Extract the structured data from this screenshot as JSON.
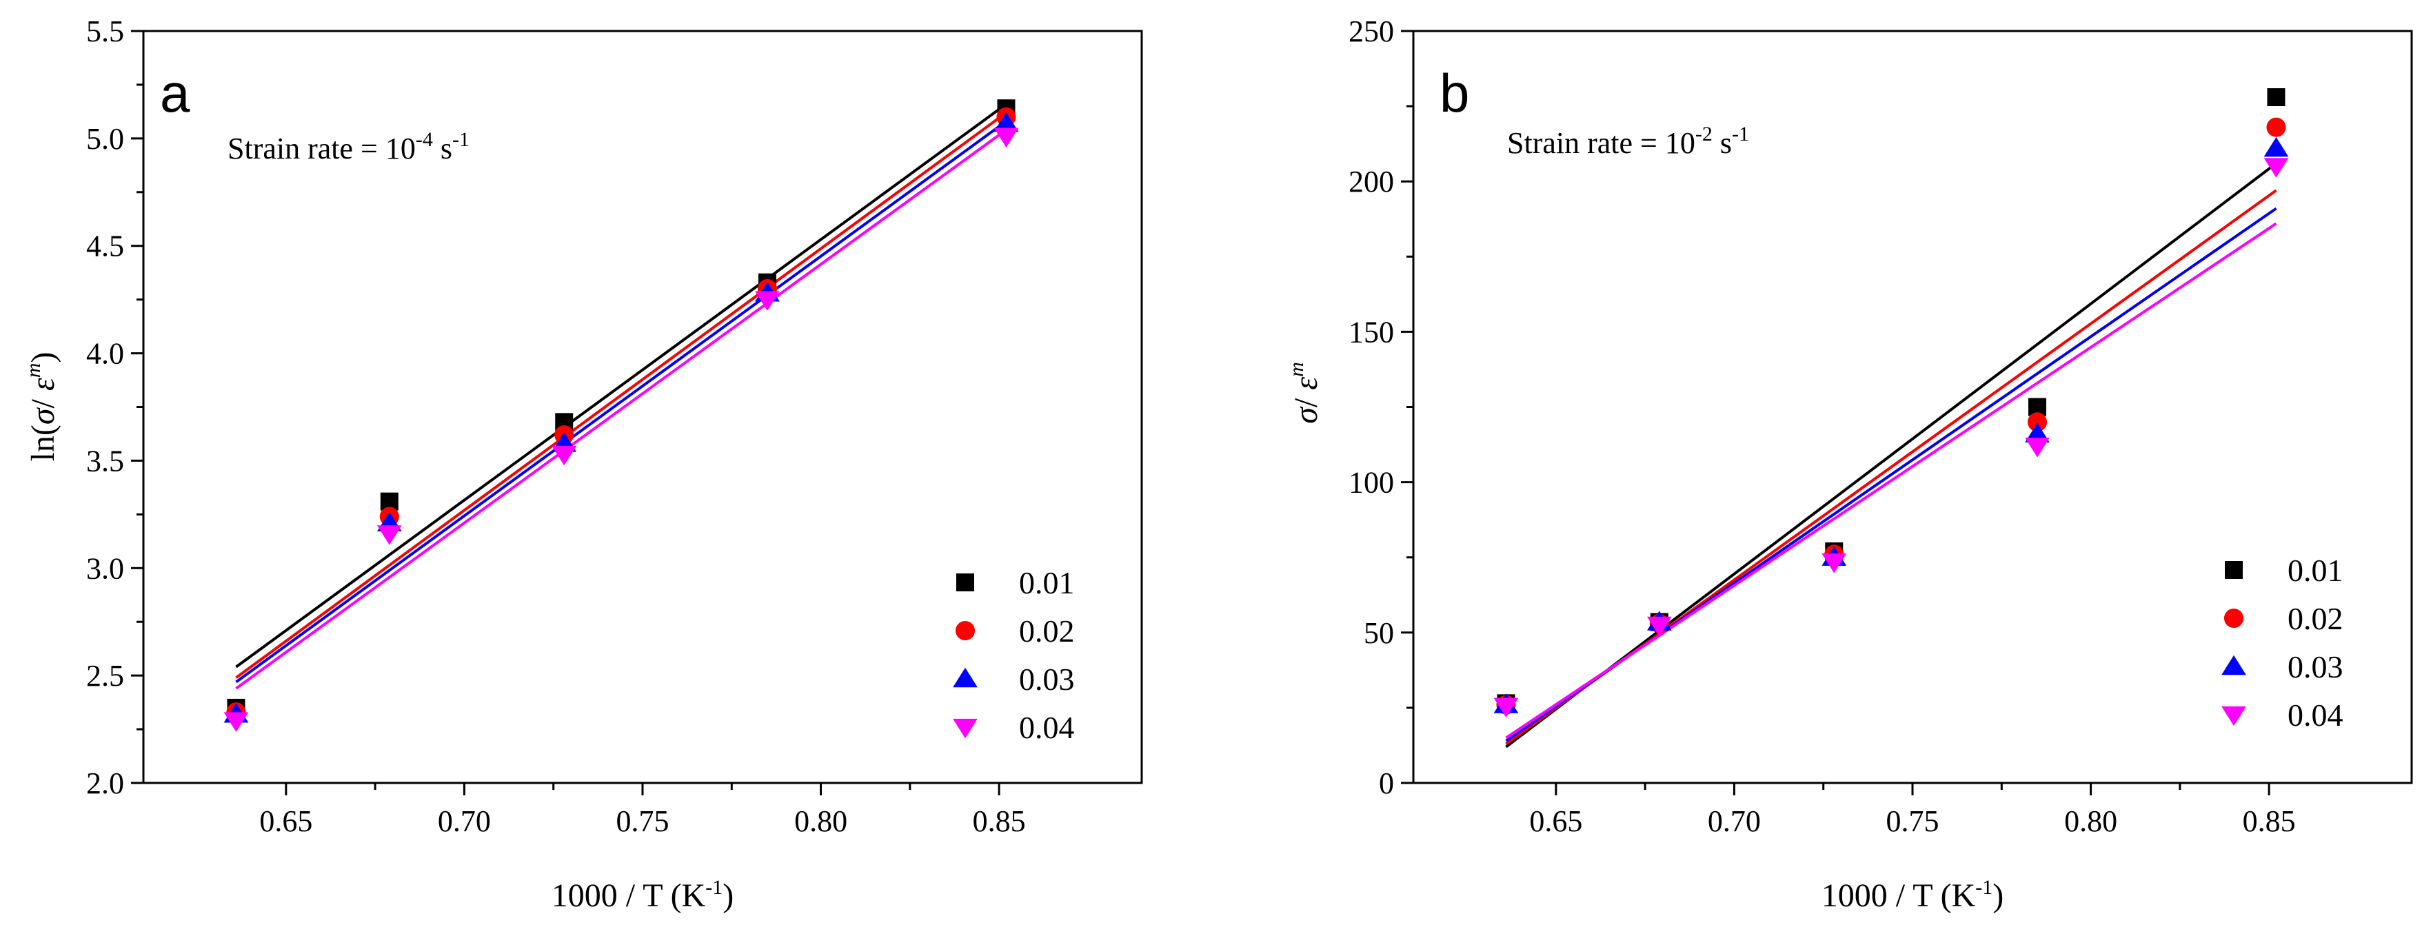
{
  "chart_data": [
    {
      "type": "scatter",
      "panel_label": "a",
      "annotation": {
        "text": "Strain rate = 10",
        "exponent": "-4",
        "unit": " s",
        "unit_exponent": "-1"
      },
      "xlabel": {
        "text": "1000 / T (K",
        "exponent": "-1",
        "close": ")"
      },
      "ylabel": {
        "prefix": "ln(",
        "sigma": "σ",
        "slash": "/ ",
        "epsilon": "ε",
        "exponent": "m",
        "close": ")"
      },
      "xlim": [
        0.61,
        0.89
      ],
      "ylim": [
        2.0,
        5.5
      ],
      "xticks": [
        0.65,
        0.7,
        0.75,
        0.8,
        0.85
      ],
      "xtick_labels": [
        "0.65",
        "0.70",
        "0.75",
        "0.80",
        "0.85"
      ],
      "yticks": [
        2.0,
        2.5,
        3.0,
        3.5,
        4.0,
        4.5,
        5.0,
        5.5
      ],
      "ytick_labels": [
        "2.0",
        "2.5",
        "3.0",
        "3.5",
        "4.0",
        "4.5",
        "5.0",
        "5.5"
      ],
      "x": [
        0.636,
        0.679,
        0.728,
        0.785,
        0.852
      ],
      "legend_position": "bottom-right",
      "series": [
        {
          "name": "0.01",
          "color": "#000000",
          "marker": "square",
          "values": [
            2.35,
            3.31,
            3.68,
            4.33,
            5.14
          ],
          "fit": [
            [
              0.636,
              2.54
            ],
            [
              0.852,
              5.16
            ]
          ]
        },
        {
          "name": "0.02",
          "color": "#ff0000",
          "marker": "circle",
          "values": [
            2.33,
            3.24,
            3.62,
            4.3,
            5.1
          ],
          "fit": [
            [
              0.636,
              2.49
            ],
            [
              0.852,
              5.12
            ]
          ]
        },
        {
          "name": "0.03",
          "color": "#0000ff",
          "marker": "triangle-up",
          "values": [
            2.32,
            3.21,
            3.58,
            4.28,
            5.07
          ],
          "fit": [
            [
              0.636,
              2.47
            ],
            [
              0.852,
              5.08
            ]
          ]
        },
        {
          "name": "0.04",
          "color": "#ff00ff",
          "marker": "triangle-down",
          "values": [
            2.29,
            3.16,
            3.53,
            4.25,
            5.01
          ],
          "fit": [
            [
              0.636,
              2.44
            ],
            [
              0.852,
              5.04
            ]
          ]
        }
      ]
    },
    {
      "type": "scatter",
      "panel_label": "b",
      "annotation": {
        "text": "Strain rate = 10",
        "exponent": "-2",
        "unit": " s",
        "unit_exponent": "-1"
      },
      "xlabel": {
        "text": "1000 / T (K",
        "exponent": "-1",
        "close": ")"
      },
      "ylabel": {
        "prefix": "",
        "sigma": "σ",
        "slash": "/ ",
        "epsilon": "ε",
        "exponent": "m",
        "close": ""
      },
      "xlim": [
        0.61,
        0.89
      ],
      "ylim": [
        0,
        250
      ],
      "xticks": [
        0.65,
        0.7,
        0.75,
        0.8,
        0.85
      ],
      "xtick_labels": [
        "0.65",
        "0.70",
        "0.75",
        "0.80",
        "0.85"
      ],
      "yticks": [
        0,
        50,
        100,
        150,
        200,
        250
      ],
      "ytick_labels": [
        "0",
        "50",
        "100",
        "150",
        "200",
        "250"
      ],
      "x": [
        0.636,
        0.679,
        0.728,
        0.785,
        0.852
      ],
      "legend_position": "bottom-right",
      "series": [
        {
          "name": "0.01",
          "color": "#000000",
          "marker": "square",
          "values": [
            26.5,
            53.5,
            77.0,
            125.0,
            228.0
          ],
          "fit": [
            [
              0.636,
              12.0
            ],
            [
              0.852,
              206.0
            ]
          ]
        },
        {
          "name": "0.02",
          "color": "#ff0000",
          "marker": "circle",
          "values": [
            26.0,
            53.0,
            76.0,
            120.0,
            218.0
          ],
          "fit": [
            [
              0.636,
              13.0
            ],
            [
              0.852,
              197.0
            ]
          ]
        },
        {
          "name": "0.03",
          "color": "#0000ff",
          "marker": "triangle-up",
          "values": [
            26.0,
            53.5,
            75.0,
            116.0,
            211.0
          ],
          "fit": [
            [
              0.636,
              14.0
            ],
            [
              0.852,
              191.0
            ]
          ]
        },
        {
          "name": "0.04",
          "color": "#ff00ff",
          "marker": "triangle-down",
          "values": [
            25.5,
            52.5,
            73.5,
            112.0,
            205.0
          ],
          "fit": [
            [
              0.636,
              15.0
            ],
            [
              0.852,
              186.0
            ]
          ]
        }
      ]
    }
  ]
}
